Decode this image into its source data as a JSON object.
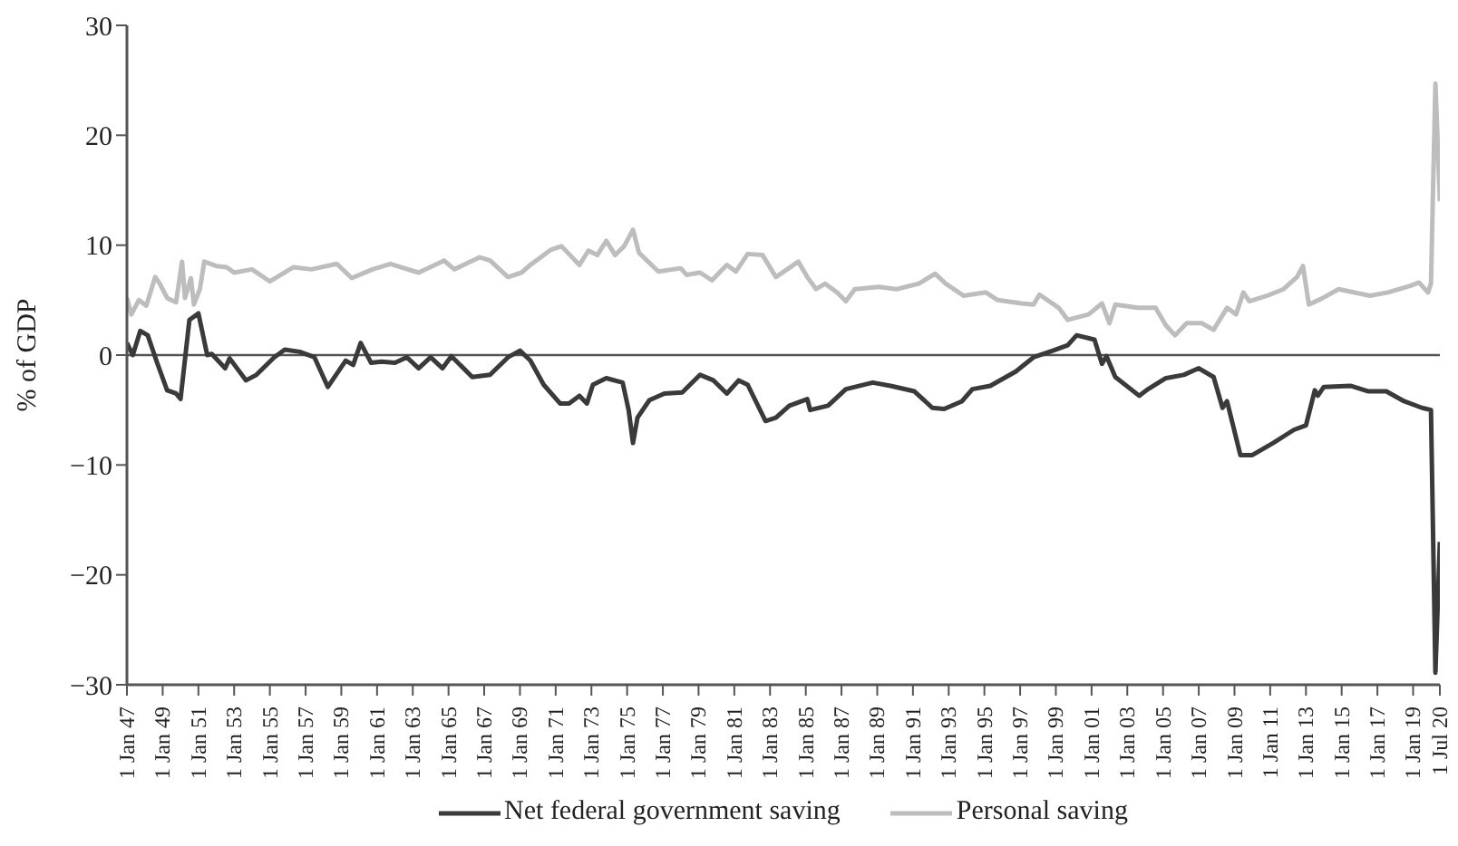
{
  "chart_data": {
    "type": "line",
    "ylabel": "% of GDP",
    "xlim": [
      "1947-01-01",
      "2020-07-01"
    ],
    "ylim": [
      -30,
      30
    ],
    "yticks": [
      {
        "value": -30,
        "label": "−30"
      },
      {
        "value": -20,
        "label": "−20"
      },
      {
        "value": -10,
        "label": "−10"
      },
      0,
      10,
      20,
      30
    ],
    "xticks": [
      {
        "value": "1947-01-01",
        "label": "1 Jan 47"
      },
      {
        "value": "1949-01-01",
        "label": "1 Jan 49"
      },
      {
        "value": "1951-01-01",
        "label": "1 Jan 51"
      },
      {
        "value": "1953-01-01",
        "label": "1 Jan 53"
      },
      {
        "value": "1955-01-01",
        "label": "1 Jan 55"
      },
      {
        "value": "1957-01-01",
        "label": "1 Jan 57"
      },
      {
        "value": "1959-01-01",
        "label": "1 Jan 59"
      },
      {
        "value": "1961-01-01",
        "label": "1 Jan 61"
      },
      {
        "value": "1963-01-01",
        "label": "1 Jan 63"
      },
      {
        "value": "1965-01-01",
        "label": "1 Jan 65"
      },
      {
        "value": "1967-01-01",
        "label": "1 Jan 67"
      },
      {
        "value": "1969-01-01",
        "label": "1 Jan 69"
      },
      {
        "value": "1971-01-01",
        "label": "1 Jan 71"
      },
      {
        "value": "1973-01-01",
        "label": "1 Jan 73"
      },
      {
        "value": "1975-01-01",
        "label": "1 Jan 75"
      },
      {
        "value": "1977-01-01",
        "label": "1 Jan 77"
      },
      {
        "value": "1979-01-01",
        "label": "1 Jan 79"
      },
      {
        "value": "1981-01-01",
        "label": "1 Jan 81"
      },
      {
        "value": "1983-01-01",
        "label": "1 Jan 83"
      },
      {
        "value": "1985-01-01",
        "label": "1 Jan 85"
      },
      {
        "value": "1987-01-01",
        "label": "1 Jan 87"
      },
      {
        "value": "1989-01-01",
        "label": "1 Jan 89"
      },
      {
        "value": "1991-01-01",
        "label": "1 Jan 91"
      },
      {
        "value": "1993-01-01",
        "label": "1 Jan 93"
      },
      {
        "value": "1995-01-01",
        "label": "1 Jan 95"
      },
      {
        "value": "1997-01-01",
        "label": "1 Jan 97"
      },
      {
        "value": "1999-01-01",
        "label": "1 Jan 99"
      },
      {
        "value": "2001-01-01",
        "label": "1 Jan 01"
      },
      {
        "value": "2003-01-01",
        "label": "1 Jan 03"
      },
      {
        "value": "2005-01-01",
        "label": "1 Jan 05"
      },
      {
        "value": "2007-01-01",
        "label": "1 Jan 07"
      },
      {
        "value": "2009-01-01",
        "label": "1 Jan 09"
      },
      {
        "value": "2011-01-01",
        "label": "1 Jan 11"
      },
      {
        "value": "2013-01-01",
        "label": "1 Jan 13"
      },
      {
        "value": "2015-01-01",
        "label": "1 Jan 15"
      },
      {
        "value": "2017-01-01",
        "label": "1 Jan 17"
      },
      {
        "value": "2019-01-01",
        "label": "1 Jan 19"
      },
      {
        "value": "2020-07-01",
        "label": "1 Jul 20"
      }
    ],
    "ref_lines": [
      {
        "axis": "y",
        "value": 0,
        "color": "#555555"
      }
    ],
    "legend": "bottom",
    "grid": false,
    "line_style": "solid",
    "marker": "none",
    "series": [
      {
        "name": "Net federal government saving",
        "color": "#3a3a3a",
        "x": [
          "1947-01",
          "1947-05",
          "1947-10",
          "1948-03",
          "1948-09",
          "1949-04",
          "1949-10",
          "1950-01",
          "1950-07",
          "1951-01",
          "1951-07",
          "1951-10",
          "1952-07",
          "1952-10",
          "1953-09",
          "1954-04",
          "1955-04",
          "1955-11",
          "1956-09",
          "1957-07",
          "1958-04",
          "1958-10",
          "1959-04",
          "1959-09",
          "1960-02",
          "1960-09",
          "1961-04",
          "1962-01",
          "1962-09",
          "1963-05",
          "1964-01",
          "1964-09",
          "1965-03",
          "1966-05",
          "1967-05",
          "1968-05",
          "1969-01",
          "1969-08",
          "1970-05",
          "1971-04",
          "1971-10",
          "1972-05",
          "1972-10",
          "1973-02",
          "1973-11",
          "1974-10",
          "1975-02",
          "1975-05",
          "1975-08",
          "1976-04",
          "1977-02",
          "1978-02",
          "1979-02",
          "1979-11",
          "1980-08",
          "1981-04",
          "1981-10",
          "1982-10",
          "1983-05",
          "1984-02",
          "1985-02",
          "1985-04",
          "1986-04",
          "1987-04",
          "1988-10",
          "1989-10",
          "1991-02",
          "1992-02",
          "1992-10",
          "1993-10",
          "1994-05",
          "1995-05",
          "1996-10",
          "1997-10",
          "1998-11",
          "1999-09",
          "2000-03",
          "2001-03",
          "2001-08",
          "2001-11",
          "2002-05",
          "2003-09",
          "2004-03",
          "2005-03",
          "2006-03",
          "2007-01",
          "2007-11",
          "2008-05",
          "2008-08",
          "2009-05",
          "2010-01",
          "2011-03",
          "2012-05",
          "2013-01",
          "2013-07",
          "2013-09",
          "2014-01",
          "2015-07",
          "2016-07",
          "2017-07",
          "2018-07",
          "2019-07",
          "2020-01",
          "2020-04",
          "2020-07"
        ],
        "values": [
          1.1,
          0,
          2.2,
          1.8,
          -0.6,
          -3.2,
          -3.5,
          -4.0,
          3.2,
          3.8,
          0,
          0.1,
          -1.2,
          -0.3,
          -2.3,
          -1.8,
          -0.2,
          0.5,
          0.3,
          -0.2,
          -2.9,
          -1.7,
          -0.5,
          -0.9,
          1.1,
          -0.7,
          -0.6,
          -0.7,
          -0.2,
          -1.2,
          -0.2,
          -1.2,
          -0.1,
          -2.0,
          -1.8,
          -0.2,
          0.4,
          -0.5,
          -2.7,
          -4.4,
          -4.4,
          -3.7,
          -4.4,
          -2.7,
          -2.1,
          -2.5,
          -5.0,
          -8.0,
          -5.7,
          -4.1,
          -3.5,
          -3.4,
          -1.8,
          -2.3,
          -3.5,
          -2.3,
          -2.7,
          -6.0,
          -5.7,
          -4.6,
          -4.0,
          -5.0,
          -4.6,
          -3.1,
          -2.5,
          -2.8,
          -3.3,
          -4.8,
          -4.9,
          -4.2,
          -3.1,
          -2.8,
          -1.5,
          -0.2,
          0.4,
          0.9,
          1.8,
          1.4,
          -0.8,
          -0.1,
          -2.0,
          -3.7,
          -3.1,
          -2.1,
          -1.8,
          -1.2,
          -2.0,
          -4.8,
          -4.2,
          -9.1,
          -9.1,
          -8.0,
          -6.8,
          -6.4,
          -3.2,
          -3.7,
          -2.9,
          -2.8,
          -3.3,
          -3.3,
          -4.2,
          -4.8,
          -5.0,
          -28.9,
          -17
        ]
      },
      {
        "name": "Personal saving",
        "color": "#bdbdbd",
        "x": [
          "1947-01",
          "1947-04",
          "1947-09",
          "1948-02",
          "1948-08",
          "1948-11",
          "1949-04",
          "1949-10",
          "1950-02",
          "1950-04",
          "1950-08",
          "1950-10",
          "1951-02",
          "1951-05",
          "1952-01",
          "1952-08",
          "1953-01",
          "1954-01",
          "1955-01",
          "1956-05",
          "1957-05",
          "1958-10",
          "1959-08",
          "1960-10",
          "1961-10",
          "1963-05",
          "1964-10",
          "1965-05",
          "1966-10",
          "1967-05",
          "1968-05",
          "1969-02",
          "1969-08",
          "1970-10",
          "1971-05",
          "1972-05",
          "1972-11",
          "1973-05",
          "1973-11",
          "1974-05",
          "1974-11",
          "1975-05",
          "1975-09",
          "1976-10",
          "1978-01",
          "1978-05",
          "1979-02",
          "1979-10",
          "1980-08",
          "1981-02",
          "1981-10",
          "1982-08",
          "1983-05",
          "1984-08",
          "1985-02",
          "1985-08",
          "1986-02",
          "1986-10",
          "1987-04",
          "1987-10",
          "1989-02",
          "1990-02",
          "1991-05",
          "1992-04",
          "1992-11",
          "1993-11",
          "1995-02",
          "1995-10",
          "1997-02",
          "1997-10",
          "1998-02",
          "1999-03",
          "1999-09",
          "2000-11",
          "2001-08",
          "2002-01",
          "2002-05",
          "2003-08",
          "2004-08",
          "2005-03",
          "2005-09",
          "2006-05",
          "2007-03",
          "2007-11",
          "2008-08",
          "2009-02",
          "2009-07",
          "2009-11",
          "2010-11",
          "2011-10",
          "2012-07",
          "2012-11",
          "2013-03",
          "2013-11",
          "2014-11",
          "2016-08",
          "2017-08",
          "2018-11",
          "2019-05",
          "2019-11",
          "2020-01",
          "2020-04",
          "2020-07"
        ],
        "values": [
          5.2,
          3.7,
          5,
          4.5,
          7.1,
          6.5,
          5.2,
          4.8,
          8.5,
          5.2,
          7,
          4.6,
          6,
          8.5,
          8.1,
          8,
          7.5,
          7.8,
          6.7,
          8,
          7.8,
          8.3,
          7,
          7.8,
          8.3,
          7.5,
          8.6,
          7.8,
          8.9,
          8.6,
          7.1,
          7.5,
          8.2,
          9.6,
          9.9,
          8.2,
          9.5,
          9.1,
          10.4,
          9.1,
          9.9,
          11.4,
          9.3,
          7.6,
          7.9,
          7.3,
          7.5,
          6.8,
          8.2,
          7.6,
          9.2,
          9.1,
          7.1,
          8.5,
          7.1,
          6.0,
          6.5,
          5.7,
          4.9,
          6.0,
          6.2,
          6.0,
          6.5,
          7.4,
          6.5,
          5.4,
          5.7,
          5.0,
          4.7,
          4.6,
          5.5,
          4.3,
          3.2,
          3.7,
          4.7,
          2.9,
          4.6,
          4.3,
          4.3,
          2.7,
          1.8,
          2.9,
          2.9,
          2.3,
          4.3,
          3.7,
          5.7,
          4.9,
          5.4,
          6.0,
          7.1,
          8.1,
          4.6,
          5.1,
          6.0,
          5.4,
          5.7,
          6.3,
          6.6,
          5.7,
          6.5,
          24.7,
          14
        ]
      }
    ]
  }
}
